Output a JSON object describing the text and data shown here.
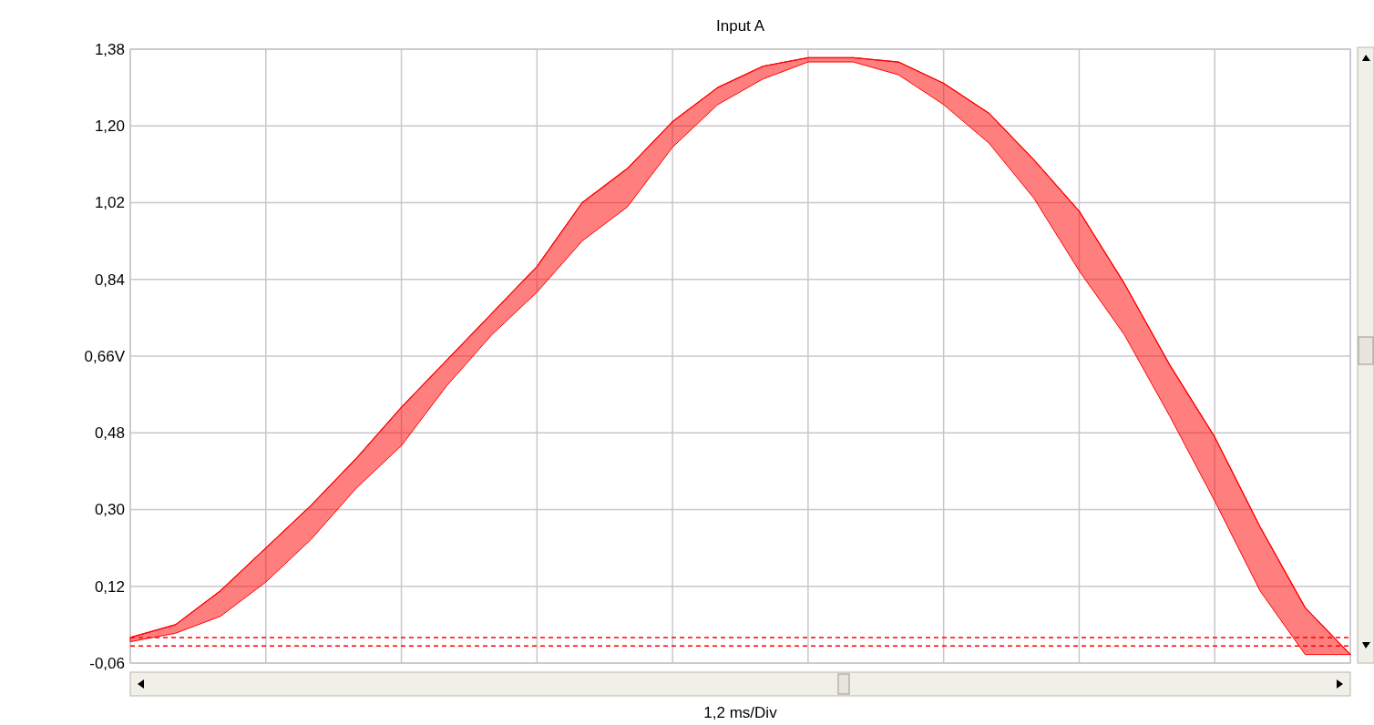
{
  "chart_data": {
    "type": "line",
    "title": "Input A",
    "xlabel": "1,2 ms/Div",
    "categories": [
      null,
      null,
      null,
      null,
      null,
      null,
      null,
      null,
      null,
      null,
      null,
      null,
      null,
      null,
      null,
      null,
      null,
      null,
      null,
      null,
      null,
      null,
      null,
      null,
      null,
      null,
      null,
      null
    ],
    "series": [
      {
        "color": "#ff0000",
        "values": [
          0.0,
          0.03,
          0.11,
          0.21,
          0.31,
          0.42,
          0.54,
          0.65,
          0.76,
          0.87,
          1.02,
          1.1,
          1.21,
          1.29,
          1.34,
          1.36,
          1.36,
          1.35,
          1.3,
          1.23,
          1.12,
          1.0,
          0.83,
          0.64,
          0.47,
          0.26,
          0.07,
          -0.04
        ],
        "upper": [
          0.0,
          0.03,
          0.11,
          0.21,
          0.31,
          0.42,
          0.54,
          0.65,
          0.76,
          0.87,
          1.02,
          1.1,
          1.21,
          1.29,
          1.34,
          1.36,
          1.36,
          1.35,
          1.3,
          1.23,
          1.12,
          1.0,
          0.83,
          0.64,
          0.47,
          0.26,
          0.07,
          -0.04
        ],
        "lower": [
          -0.01,
          0.01,
          0.05,
          0.13,
          0.23,
          0.35,
          0.45,
          0.59,
          0.71,
          0.81,
          0.93,
          1.01,
          1.15,
          1.25,
          1.31,
          1.35,
          1.35,
          1.32,
          1.25,
          1.16,
          1.03,
          0.86,
          0.71,
          0.52,
          0.32,
          0.11,
          -0.04,
          -0.04
        ]
      }
    ],
    "ylim": [
      -0.06,
      1.38
    ],
    "yticks": [
      {
        "value": -0.06,
        "label": "-0,06"
      },
      {
        "value": 0.12,
        "label": "0,12"
      },
      {
        "value": 0.3,
        "label": "0,30"
      },
      {
        "value": 0.48,
        "label": "0,48"
      },
      {
        "value": 0.66,
        "label": "0,66V"
      },
      {
        "value": 0.84,
        "label": "0,84"
      },
      {
        "value": 1.02,
        "label": "1,02"
      },
      {
        "value": 1.2,
        "label": "1,20"
      },
      {
        "value": 1.38,
        "label": "1,38"
      }
    ],
    "ref_lines": [
      {
        "axis": "y",
        "value": 0.0,
        "color": "#ff0000",
        "line_style": "dashed"
      },
      {
        "axis": "y",
        "value": -0.02,
        "color": "#ff0000",
        "line_style": "dashed"
      }
    ],
    "grid": true,
    "tick_labels": "y",
    "marker": "none",
    "line_style": "solid"
  }
}
